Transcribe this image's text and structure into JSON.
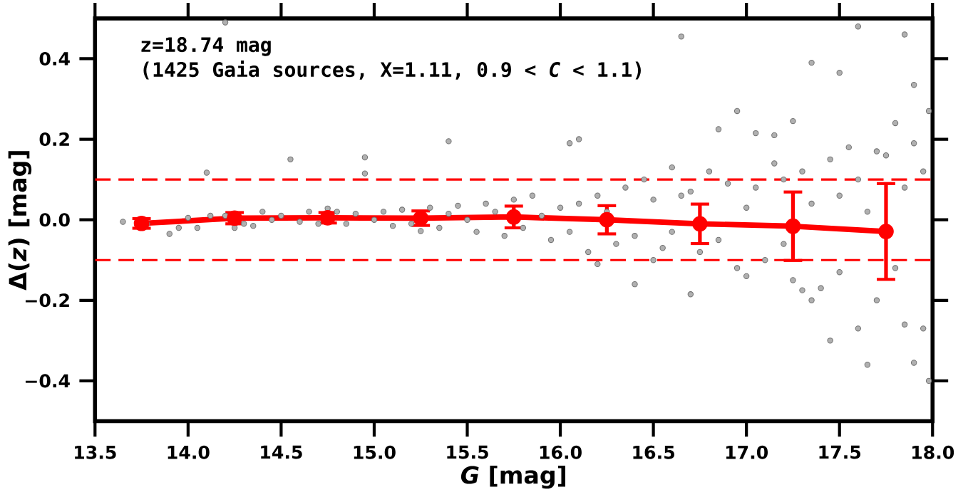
{
  "chart_data": {
    "type": "scatter",
    "xlabel": "*G* [mag]",
    "ylabel": "Δ(*z*) [mag]",
    "annotations": [
      "z=18.74 mag",
      "(1425 Gaia sources, X=1.11, **0.9 < *C* < 1.1**)"
    ],
    "xlim": [
      13.5,
      18.0
    ],
    "ylim": [
      -0.5,
      0.5
    ],
    "xticks": [
      13.5,
      {
        "value": 14,
        "label": "14.0"
      },
      14.5,
      {
        "value": 15,
        "label": "15.0"
      },
      15.5,
      {
        "value": 16,
        "label": "16.0"
      },
      16.5,
      {
        "value": 17,
        "label": "17.0"
      },
      17.5,
      {
        "value": 18,
        "label": "18.0"
      }
    ],
    "yticks": [
      {
        "value": -0.4,
        "label": "−0.4"
      },
      {
        "value": -0.2,
        "label": "−0.2"
      },
      {
        "value": 0,
        "label": "0.0"
      },
      0.2,
      0.4
    ],
    "grid": false,
    "ref_lines": [
      {
        "axis": "y",
        "value": 0.1,
        "color": "#ff0000",
        "line_style": "dashed"
      },
      {
        "axis": "y",
        "value": -0.1,
        "color": "#ff0000",
        "line_style": "dashed"
      }
    ],
    "series": [
      {
        "type": "scatter",
        "color": "#b0b0b0",
        "marker": "circle",
        "x": [
          13.65,
          13.78,
          13.9,
          13.95,
          14.0,
          14.05,
          14.1,
          14.12,
          14.2,
          14.25,
          14.3,
          14.35,
          14.4,
          14.45,
          14.5,
          14.55,
          14.6,
          14.65,
          14.7,
          14.75,
          14.8,
          14.85,
          14.9,
          14.95,
          14.95,
          15.0,
          15.05,
          15.1,
          15.15,
          15.2,
          15.25,
          15.3,
          15.35,
          15.4,
          15.45,
          15.5,
          15.55,
          15.6,
          15.65,
          15.7,
          15.75,
          15.8,
          15.85,
          15.9,
          15.95,
          16.0,
          16.05,
          16.1,
          16.15,
          16.2,
          16.25,
          16.3,
          16.35,
          16.4,
          16.45,
          16.5,
          16.5,
          16.55,
          16.6,
          16.6,
          16.65,
          16.7,
          16.7,
          16.75,
          16.8,
          16.85,
          16.9,
          16.95,
          17.0,
          17.0,
          17.05,
          17.1,
          17.15,
          17.2,
          17.2,
          17.25,
          17.3,
          17.35,
          17.35,
          17.4,
          17.45,
          17.45,
          17.5,
          17.5,
          17.55,
          17.6,
          17.6,
          17.65,
          17.65,
          17.7,
          17.75,
          17.8,
          17.85,
          17.85,
          17.9,
          17.9,
          17.95,
          17.95,
          17.98,
          17.98,
          14.2,
          15.4,
          16.05,
          16.1,
          16.65,
          17.25,
          17.35,
          17.6,
          17.85,
          17.9,
          17.5,
          16.85,
          16.95,
          17.15,
          17.05,
          17.8,
          17.7,
          17.3,
          16.4,
          16.2
        ],
        "values": [
          -0.005,
          -0.01,
          -0.035,
          -0.02,
          0.005,
          -0.02,
          0.117,
          0.01,
          0.01,
          -0.02,
          -0.01,
          -0.015,
          0.02,
          0.0,
          0.01,
          0.15,
          -0.005,
          0.02,
          -0.01,
          0.028,
          0.02,
          -0.01,
          0.015,
          0.155,
          0.115,
          0.0,
          0.02,
          -0.015,
          0.025,
          -0.01,
          -0.028,
          0.03,
          -0.02,
          0.015,
          0.035,
          0.0,
          -0.03,
          0.04,
          0.02,
          -0.04,
          0.05,
          -0.02,
          0.06,
          0.01,
          -0.05,
          0.03,
          -0.03,
          0.04,
          -0.08,
          0.06,
          0.02,
          -0.06,
          0.08,
          -0.04,
          0.1,
          -0.1,
          0.05,
          -0.07,
          0.13,
          -0.03,
          0.06,
          -0.185,
          0.07,
          -0.08,
          0.12,
          -0.05,
          0.09,
          -0.12,
          0.03,
          -0.14,
          0.08,
          -0.1,
          0.14,
          -0.06,
          0.1,
          -0.15,
          0.12,
          -0.2,
          0.04,
          -0.17,
          0.15,
          -0.3,
          0.06,
          -0.13,
          0.18,
          -0.27,
          0.1,
          -0.36,
          0.02,
          -0.2,
          0.16,
          -0.12,
          0.08,
          -0.26,
          0.19,
          -0.355,
          0.12,
          -0.27,
          0.27,
          -0.4,
          0.49,
          0.195,
          0.19,
          0.2,
          0.455,
          0.245,
          0.39,
          0.48,
          0.46,
          0.335,
          0.365,
          0.225,
          0.27,
          0.21,
          0.215,
          0.24,
          0.17,
          -0.175,
          -0.16,
          -0.11
        ]
      },
      {
        "type": "line",
        "color": "#ff0000",
        "marker": "circle",
        "x": [
          13.75,
          14.25,
          14.75,
          15.25,
          15.75,
          16.25,
          16.75,
          17.25,
          17.75
        ],
        "values": [
          -0.009,
          0.004,
          0.005,
          0.004,
          0.007,
          0.0,
          -0.01,
          -0.016,
          -0.029
        ],
        "errors": [
          0.012,
          0.014,
          0.013,
          0.018,
          0.027,
          0.035,
          0.049,
          0.085,
          0.119
        ]
      }
    ]
  }
}
